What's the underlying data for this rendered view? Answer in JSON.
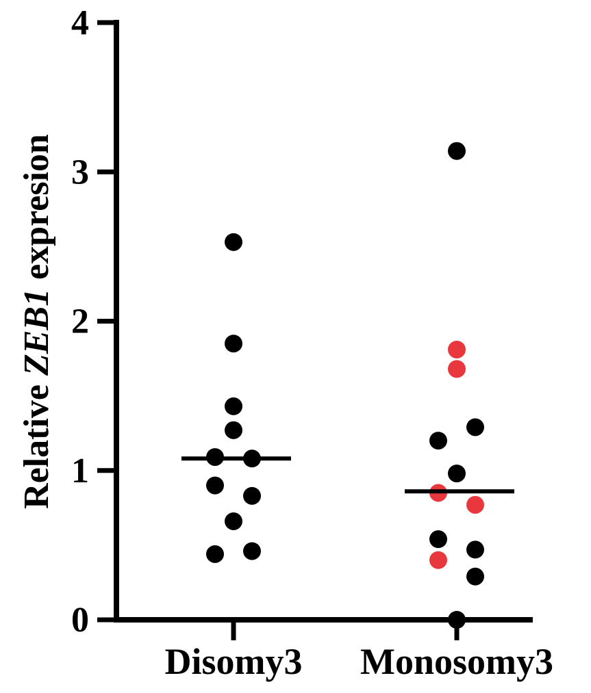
{
  "chart_data": {
    "type": "scatter",
    "title": "",
    "ylabel_prefix": "Relative ",
    "ylabel_gene": "ZEB1",
    "ylabel_suffix": " expresion",
    "xlabel": "",
    "ylim": [
      0,
      4
    ],
    "yticks": [
      0,
      1,
      2,
      3,
      4
    ],
    "ytick_labels": [
      "0",
      "1",
      "2",
      "3",
      "4"
    ],
    "categories": [
      "Disomy3",
      "Monosomy3"
    ],
    "grid": false,
    "colors": {
      "default_point": "#000000",
      "highlight_point": "#e8383d",
      "axis": "#000000"
    },
    "groups": [
      {
        "category": "Disomy3",
        "median": 1.08,
        "points": [
          {
            "y": 2.53,
            "offset": 0,
            "color": "#000000"
          },
          {
            "y": 1.85,
            "offset": 0,
            "color": "#000000"
          },
          {
            "y": 1.43,
            "offset": 0,
            "color": "#000000"
          },
          {
            "y": 1.27,
            "offset": 0,
            "color": "#000000"
          },
          {
            "y": 1.09,
            "offset": -1,
            "color": "#000000"
          },
          {
            "y": 1.08,
            "offset": 1,
            "color": "#000000"
          },
          {
            "y": 0.9,
            "offset": -1,
            "color": "#000000"
          },
          {
            "y": 0.83,
            "offset": 1,
            "color": "#000000"
          },
          {
            "y": 0.66,
            "offset": 0,
            "color": "#000000"
          },
          {
            "y": 0.46,
            "offset": 1,
            "color": "#000000"
          },
          {
            "y": 0.44,
            "offset": -1,
            "color": "#000000"
          }
        ]
      },
      {
        "category": "Monosomy3",
        "median": 0.86,
        "points": [
          {
            "y": 3.14,
            "offset": 0,
            "color": "#000000"
          },
          {
            "y": 1.81,
            "offset": 0,
            "color": "#e8383d"
          },
          {
            "y": 1.68,
            "offset": 0,
            "color": "#e8383d"
          },
          {
            "y": 1.29,
            "offset": 1,
            "color": "#000000"
          },
          {
            "y": 1.2,
            "offset": -1,
            "color": "#000000"
          },
          {
            "y": 0.98,
            "offset": 0,
            "color": "#000000"
          },
          {
            "y": 0.85,
            "offset": -1,
            "color": "#e8383d"
          },
          {
            "y": 0.77,
            "offset": 1,
            "color": "#e8383d"
          },
          {
            "y": 0.54,
            "offset": -1,
            "color": "#000000"
          },
          {
            "y": 0.47,
            "offset": 1,
            "color": "#000000"
          },
          {
            "y": 0.4,
            "offset": -1,
            "color": "#e8383d"
          },
          {
            "y": 0.29,
            "offset": 1,
            "color": "#000000"
          },
          {
            "y": 0.0,
            "offset": 0,
            "color": "#000000"
          }
        ]
      }
    ]
  }
}
